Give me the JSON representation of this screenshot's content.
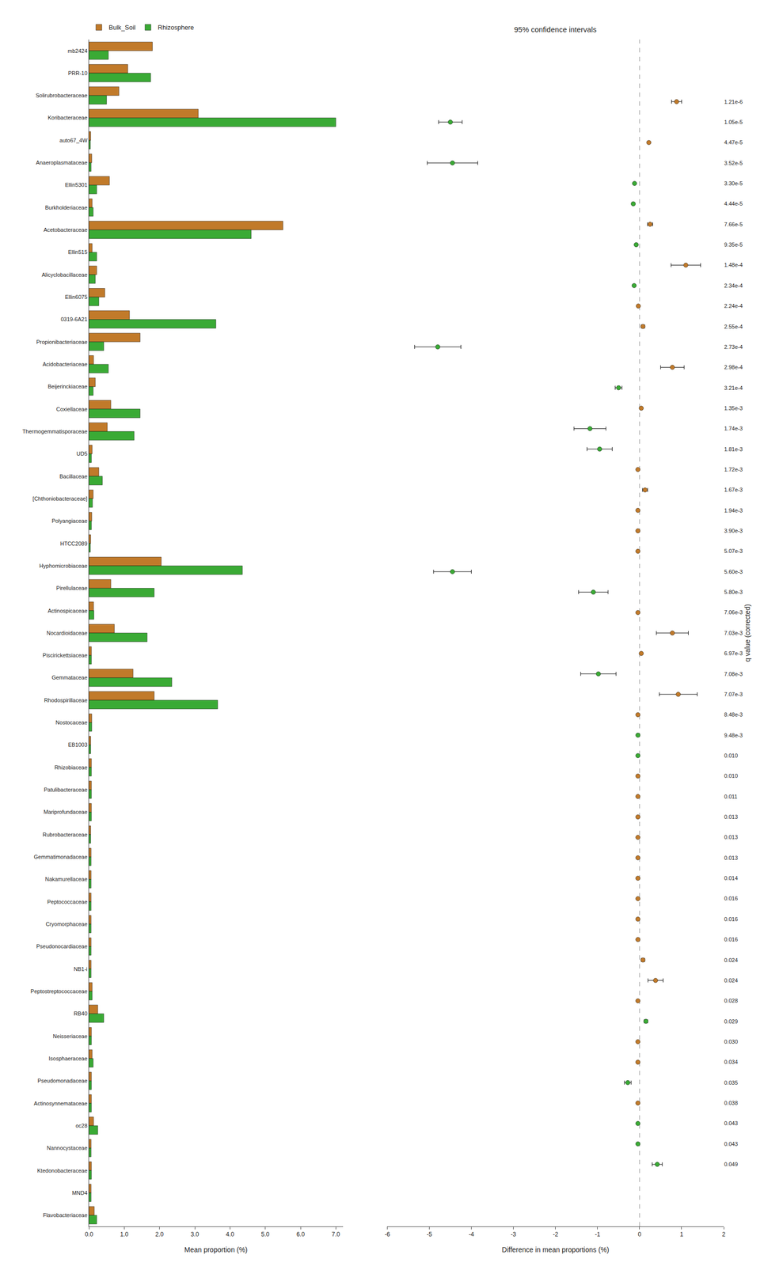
{
  "chart_data": [
    {
      "type": "bar",
      "orientation": "horizontal",
      "categories": [
        "mb2424",
        "PRR-10",
        "Solirubrobacteraceae",
        "Koribacteraceae",
        "auto67_4W",
        "Anaeroplasmataceae",
        "Ellin5301",
        "Burkholderiaceae",
        "Acetobacteraceae",
        "Ellin515",
        "Alicyclobacillaceae",
        "Ellin6075",
        "0319-6A21",
        "Propionibacteriaceae",
        "Acidobacteriaceae",
        "Beijerinckiaceae",
        "Coxiellaceae",
        "Thermogemmatisporaceae",
        "UD5",
        "Bacillaceae",
        "[Chthoniobacteraceae]",
        "Polyangiaceae",
        "HTCC2089",
        "Hyphomicrobiaceae",
        "Pirellulaceae",
        "Actinospicaceae",
        "Nocardioidaceae",
        "Piscirickettsiaceae",
        "Gemmataceae",
        "Rhodospirillaceae",
        "Nostocaceae",
        "EB1003",
        "Rhizobiaceae",
        "Patulibacteraceae",
        "Mariprofundaceae",
        "Rubrobacteraceae",
        "Gemmatimonadaceae",
        "Nakamurellaceae",
        "Peptococcaceae",
        "Cryomorphaceae",
        "Pseudonocardiaceae",
        "NB1-i",
        "Peptostreptococcaceae",
        "RB40",
        "Neisseriaceae",
        "Isosphaeraceae",
        "Pseudomonadaceae",
        "Actinosynnemataceae",
        "oc28",
        "Nannocystaceae",
        "Ktedonobacteraceae",
        "MND4",
        "Flavobacteriaceae"
      ],
      "series": [
        {
          "name": "Bulk_Soil",
          "color": "#c17a2a",
          "values": [
            1.8,
            1.1,
            0.85,
            3.1,
            0.05,
            0.08,
            0.58,
            0.09,
            5.5,
            0.09,
            0.22,
            0.45,
            1.15,
            1.45,
            0.13,
            0.18,
            0.62,
            0.52,
            0.09,
            0.28,
            0.12,
            0.08,
            0.05,
            2.05,
            0.62,
            0.13,
            0.72,
            0.07,
            1.25,
            1.85,
            0.08,
            0.05,
            0.07,
            0.07,
            0.07,
            0.05,
            0.06,
            0.06,
            0.06,
            0.06,
            0.06,
            0.06,
            0.09,
            0.25,
            0.07,
            0.09,
            0.07,
            0.07,
            0.13,
            0.06,
            0.07,
            0.06,
            0.15
          ]
        },
        {
          "name": "Rhizosphere",
          "color": "#3aaa35",
          "values": [
            0.55,
            1.75,
            0.5,
            7.0,
            0.04,
            0.06,
            0.22,
            0.12,
            4.6,
            0.22,
            0.18,
            0.28,
            3.6,
            0.42,
            0.55,
            0.12,
            1.45,
            1.28,
            0.07,
            0.38,
            0.1,
            0.07,
            0.04,
            4.35,
            1.85,
            0.14,
            1.65,
            0.07,
            2.35,
            3.65,
            0.08,
            0.05,
            0.07,
            0.07,
            0.07,
            0.05,
            0.06,
            0.06,
            0.06,
            0.06,
            0.06,
            0.06,
            0.09,
            0.42,
            0.07,
            0.12,
            0.07,
            0.07,
            0.25,
            0.06,
            0.07,
            0.06,
            0.22
          ]
        }
      ],
      "xlabel": "Mean proportion (%)",
      "xlim": [
        0,
        7.2
      ],
      "xticks": [
        {
          "value": 0,
          "label": "0.0"
        },
        {
          "value": 1,
          "label": "1.0"
        },
        {
          "value": 2,
          "label": "2.0"
        },
        {
          "value": 3,
          "label": "3.0"
        },
        {
          "value": 4,
          "label": "4.0"
        },
        {
          "value": 5,
          "label": "5.0"
        },
        {
          "value": 6,
          "label": "6.0"
        },
        {
          "value": 7,
          "label": "7.0"
        }
      ],
      "legend": "upper left",
      "grid": false
    },
    {
      "type": "scatter",
      "title": "95% confidence intervals",
      "categories": [
        "mb2424",
        "PRR-10",
        "Solirubrobacteraceae",
        "Koribacteraceae",
        "auto67_4W",
        "Anaeroplasmataceae",
        "Ellin5301",
        "Burkholderiaceae",
        "Acetobacteraceae",
        "Ellin515",
        "Alicyclobacillaceae",
        "Ellin6075",
        "0319-6A21",
        "Propionibacteriaceae",
        "Acidobacteriaceae",
        "Beijerinckiaceae",
        "Coxiellaceae",
        "Thermogemmatisporaceae",
        "UD5",
        "Bacillaceae",
        "[Chthoniobacteraceae]",
        "Polyangiaceae",
        "HTCC2089",
        "Hyphomicrobiaceae",
        "Pirellulaceae",
        "Actinospicaceae",
        "Nocardioidaceae",
        "Piscirickettsiaceae",
        "Gemmataceae",
        "Rhodospirillaceae",
        "Nostocaceae",
        "EB1003",
        "Rhizobiaceae",
        "Patulibacteraceae",
        "Mariprofundaceae",
        "Rubrobacteraceae",
        "Gemmatimonadaceae",
        "Nakamurellaceae",
        "Peptococcaceae",
        "Cryomorphaceae",
        "Pseudonocardiaceae",
        "NB1-i",
        "Peptostreptococcaceae",
        "RB40",
        "Neisseriaceae",
        "Isosphaeraceae",
        "Pseudomonadaceae",
        "Actinosynnemataceae",
        "oc28",
        "Nannocystaceae",
        "Ktedonobacteraceae",
        "MND4",
        "Flavobacteriaceae"
      ],
      "values": [
        0.88,
        -4.5,
        0.22,
        -4.45,
        -0.12,
        -0.15,
        0.25,
        -0.08,
        1.1,
        -0.13,
        -0.03,
        0.08,
        -4.8,
        0.78,
        -0.5,
        0.04,
        -1.18,
        -0.95,
        -0.04,
        0.13,
        -0.04,
        -0.04,
        -0.04,
        -4.45,
        -1.1,
        -0.04,
        0.78,
        0.04,
        -0.98,
        0.92,
        -0.04,
        -0.04,
        -0.04,
        -0.04,
        -0.04,
        -0.04,
        -0.04,
        -0.04,
        -0.04,
        -0.04,
        -0.04,
        -0.04,
        0.08,
        0.38,
        -0.04,
        0.15,
        -0.04,
        -0.04,
        -0.28,
        -0.04,
        -0.04,
        -0.04,
        0.42
      ],
      "errors": [
        0.12,
        0.28,
        0.0,
        0.6,
        0.0,
        0.0,
        0.06,
        0.0,
        0.35,
        0.0,
        0.0,
        0.04,
        0.55,
        0.28,
        0.08,
        0.0,
        0.38,
        0.3,
        0.0,
        0.06,
        0.0,
        0.0,
        0.0,
        0.45,
        0.35,
        0.0,
        0.38,
        0.0,
        0.42,
        0.45,
        0.0,
        0.0,
        0.0,
        0.0,
        0.0,
        0.0,
        0.0,
        0.0,
        0.0,
        0.0,
        0.0,
        0.0,
        0.04,
        0.18,
        0.0,
        0.04,
        0.0,
        0.0,
        0.08,
        0.0,
        0.0,
        0.0,
        0.12
      ],
      "colors": [
        "#c17a2a",
        "#3aaa35",
        "#c17a2a",
        "#3aaa35",
        "#3aaa35",
        "#3aaa35",
        "#c17a2a",
        "#3aaa35",
        "#c17a2a",
        "#3aaa35",
        "#c17a2a",
        "#c17a2a",
        "#3aaa35",
        "#c17a2a",
        "#3aaa35",
        "#c17a2a",
        "#3aaa35",
        "#3aaa35",
        "#c17a2a",
        "#c17a2a",
        "#c17a2a",
        "#c17a2a",
        "#c17a2a",
        "#3aaa35",
        "#3aaa35",
        "#c17a2a",
        "#c17a2a",
        "#c17a2a",
        "#3aaa35",
        "#c17a2a",
        "#c17a2a",
        "#3aaa35",
        "#3aaa35",
        "#c17a2a",
        "#c17a2a",
        "#c17a2a",
        "#c17a2a",
        "#c17a2a",
        "#c17a2a",
        "#c17a2a",
        "#c17a2a",
        "#c17a2a",
        "#c17a2a",
        "#c17a2a",
        "#c17a2a",
        "#3aaa35",
        "#c17a2a",
        "#c17a2a",
        "#3aaa35",
        "#c17a2a",
        "#3aaa35",
        "#3aaa35",
        "#3aaa35"
      ],
      "marker": "circle",
      "xlabel": "Difference in mean proportions (%)",
      "xlim": [
        -6,
        2
      ],
      "xticks": [
        -6,
        -5,
        -4,
        -3,
        -2,
        -1,
        0,
        1,
        2
      ],
      "reference_line": 0,
      "y2label": "q value (corrected)",
      "qvalues": [
        "1.21e-6",
        "1.05e-5",
        "4.47e-5",
        "3.52e-5",
        "3.30e-5",
        "4.44e-5",
        "7.66e-5",
        "9.35e-5",
        "1.48e-4",
        "2.34e-4",
        "2.24e-4",
        "2.55e-4",
        "2.73e-4",
        "2.98e-4",
        "3.21e-4",
        "1.35e-3",
        "1.74e-3",
        "1.81e-3",
        "1.72e-3",
        "1.67e-3",
        "1.94e-3",
        "3.90e-3",
        "5.07e-3",
        "5.60e-3",
        "5.80e-3",
        "7.06e-3",
        "7.03e-3",
        "6.97e-3",
        "7.08e-3",
        "7.07e-3",
        "8.48e-3",
        "9.48e-3",
        "0.010",
        "0.010",
        "0.011",
        "0.013",
        "0.013",
        "0.013",
        "0.014",
        "0.016",
        "0.016",
        "0.016",
        "0.024",
        "0.024",
        "0.028",
        "0.029",
        "0.030",
        "0.034",
        "0.035",
        "0.038",
        "0.043",
        "0.043",
        "0.049"
      ],
      "grid": false
    }
  ]
}
